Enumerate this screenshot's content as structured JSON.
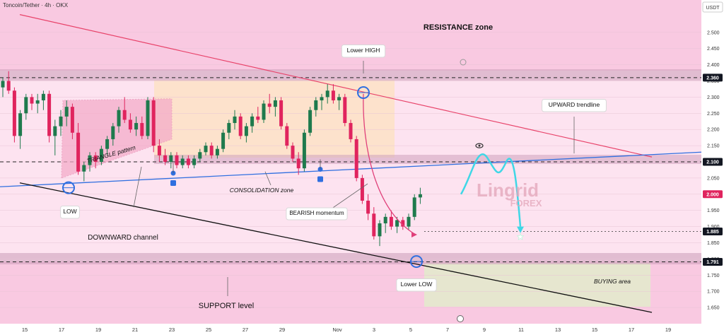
{
  "header": {
    "symbol_title": "Toncoin/Tether · 4h · OKX",
    "currency": "USDT"
  },
  "watermark": {
    "line1": "Lingrid",
    "line2": "FOREX"
  },
  "colors": {
    "pink_bg": "#fbd2e9",
    "candle_up": "#1f7a4d",
    "candle_down": "#e0245e",
    "resistance_line": "#e8436a",
    "blue_line": "#2f6fe0",
    "black_line": "#111111",
    "cyan_path": "#3fd7e6",
    "curve_pink": "#e0407a"
  },
  "chart_data": {
    "type": "candlestick",
    "title": "Toncoin/Tether · 4h · OKX",
    "y_axis": {
      "unit": "USDT",
      "range": [
        1.6,
        2.6
      ],
      "ticks": [
        2.5,
        2.45,
        2.4,
        2.35,
        2.3,
        2.25,
        2.2,
        2.15,
        2.1,
        2.05,
        2.0,
        1.95,
        1.9,
        1.85,
        1.8,
        1.75,
        1.7,
        1.65
      ],
      "tick_labels": [
        "2.500",
        "2.450",
        "2.400",
        "2.350",
        "2.300",
        "2.250",
        "2.200",
        "2.150",
        "2.100",
        "2.050",
        "2.000",
        "1.950",
        "1.900",
        "1.850",
        "1.800",
        "1.750",
        "1.700",
        "1.650"
      ],
      "price_tags": [
        {
          "label": "2.360",
          "value": 2.36,
          "style": "dark"
        },
        {
          "label": "2.100",
          "value": 2.1,
          "style": "dark"
        },
        {
          "label": "2.000",
          "value": 2.0,
          "style": "red"
        },
        {
          "label": "1.885",
          "value": 1.885,
          "style": "dark"
        },
        {
          "label": "1.791",
          "value": 1.791,
          "style": "dark"
        }
      ]
    },
    "x_axis": {
      "labels": [
        "15",
        "17",
        "19",
        "21",
        "23",
        "25",
        "27",
        "29",
        "Nov",
        "3",
        "5",
        "7",
        "9",
        "11",
        "13",
        "15",
        "17",
        "19"
      ],
      "label_day_index": [
        0,
        2,
        4,
        6,
        8,
        10,
        12,
        14,
        17,
        19,
        21,
        23,
        25,
        27,
        29,
        31,
        33,
        35
      ],
      "start_day_label": "15"
    },
    "candles": [
      [
        2.33,
        2.36,
        2.3,
        2.35
      ],
      [
        2.35,
        2.38,
        2.31,
        2.32
      ],
      [
        2.32,
        2.33,
        2.16,
        2.18
      ],
      [
        2.18,
        2.26,
        2.14,
        2.25
      ],
      [
        2.25,
        2.31,
        2.23,
        2.3
      ],
      [
        2.3,
        2.31,
        2.26,
        2.28
      ],
      [
        2.28,
        2.31,
        2.25,
        2.29
      ],
      [
        2.29,
        2.32,
        2.26,
        2.31
      ],
      [
        2.31,
        2.32,
        2.16,
        2.18
      ],
      [
        2.18,
        2.23,
        2.12,
        2.21
      ],
      [
        2.21,
        2.26,
        2.18,
        2.24
      ],
      [
        2.24,
        2.29,
        2.21,
        2.27
      ],
      [
        2.27,
        2.28,
        2.17,
        2.19
      ],
      [
        2.19,
        2.22,
        2.06,
        2.07
      ],
      [
        2.07,
        2.1,
        2.04,
        2.09
      ],
      [
        2.09,
        2.13,
        2.07,
        2.12
      ],
      [
        2.12,
        2.13,
        2.08,
        2.1
      ],
      [
        2.1,
        2.15,
        2.09,
        2.14
      ],
      [
        2.14,
        2.18,
        2.12,
        2.17
      ],
      [
        2.17,
        2.22,
        2.15,
        2.21
      ],
      [
        2.21,
        2.27,
        2.19,
        2.26
      ],
      [
        2.26,
        2.3,
        2.22,
        2.23
      ],
      [
        2.23,
        2.25,
        2.19,
        2.2
      ],
      [
        2.2,
        2.24,
        2.18,
        2.22
      ],
      [
        2.22,
        2.24,
        2.17,
        2.18
      ],
      [
        2.18,
        2.3,
        2.17,
        2.29
      ],
      [
        2.29,
        2.3,
        2.13,
        2.15
      ],
      [
        2.15,
        2.17,
        2.1,
        2.12
      ],
      [
        2.12,
        2.14,
        2.09,
        2.1
      ],
      [
        2.1,
        2.13,
        2.08,
        2.12
      ],
      [
        2.12,
        2.13,
        2.08,
        2.09
      ],
      [
        2.09,
        2.12,
        2.08,
        2.11
      ],
      [
        2.11,
        2.12,
        2.08,
        2.09
      ],
      [
        2.09,
        2.12,
        2.08,
        2.11
      ],
      [
        2.11,
        2.14,
        2.1,
        2.13
      ],
      [
        2.13,
        2.16,
        2.12,
        2.15
      ],
      [
        2.15,
        2.16,
        2.11,
        2.12
      ],
      [
        2.12,
        2.15,
        2.11,
        2.14
      ],
      [
        2.14,
        2.2,
        2.13,
        2.19
      ],
      [
        2.19,
        2.23,
        2.17,
        2.22
      ],
      [
        2.22,
        2.26,
        2.2,
        2.24
      ],
      [
        2.24,
        2.25,
        2.17,
        2.18
      ],
      [
        2.18,
        2.22,
        2.16,
        2.21
      ],
      [
        2.21,
        2.25,
        2.19,
        2.24
      ],
      [
        2.24,
        2.27,
        2.22,
        2.23
      ],
      [
        2.23,
        2.29,
        2.22,
        2.28
      ],
      [
        2.28,
        2.31,
        2.25,
        2.27
      ],
      [
        2.27,
        2.3,
        2.24,
        2.29
      ],
      [
        2.29,
        2.3,
        2.2,
        2.21
      ],
      [
        2.21,
        2.22,
        2.14,
        2.15
      ],
      [
        2.15,
        2.16,
        2.1,
        2.11
      ],
      [
        2.11,
        2.13,
        2.06,
        2.08
      ],
      [
        2.08,
        2.2,
        2.07,
        2.19
      ],
      [
        2.19,
        2.27,
        2.18,
        2.26
      ],
      [
        2.26,
        2.3,
        2.24,
        2.29
      ],
      [
        2.29,
        2.31,
        2.26,
        2.3
      ],
      [
        2.3,
        2.34,
        2.28,
        2.32
      ],
      [
        2.32,
        2.34,
        2.28,
        2.29
      ],
      [
        2.29,
        2.31,
        2.26,
        2.3
      ],
      [
        2.3,
        2.31,
        2.21,
        2.22
      ],
      [
        2.22,
        2.23,
        2.16,
        2.17
      ],
      [
        2.17,
        2.18,
        2.04,
        2.05
      ],
      [
        2.05,
        2.06,
        1.97,
        1.98
      ],
      [
        1.98,
        2.0,
        1.92,
        1.94
      ],
      [
        1.94,
        1.96,
        1.86,
        1.87
      ],
      [
        1.87,
        1.92,
        1.84,
        1.91
      ],
      [
        1.91,
        1.94,
        1.88,
        1.93
      ],
      [
        1.93,
        1.95,
        1.89,
        1.9
      ],
      [
        1.9,
        1.93,
        1.88,
        1.92
      ],
      [
        1.92,
        1.93,
        1.89,
        1.9
      ],
      [
        1.9,
        1.94,
        1.89,
        1.93
      ],
      [
        1.93,
        2.0,
        1.92,
        1.99
      ],
      [
        1.99,
        2.02,
        1.97,
        2.0
      ]
    ],
    "annotations": [
      {
        "text": "RESISTANCE zone"
      },
      {
        "text": "Lower HIGH"
      },
      {
        "text": "UPWARD trendline"
      },
      {
        "text": "TRIANGLE pattern"
      },
      {
        "text": "CONSOLIDATION zone"
      },
      {
        "text": "BEARISH momentum"
      },
      {
        "text": "LOW"
      },
      {
        "text": "DOWNWARD channel"
      },
      {
        "text": "Lower LOW"
      },
      {
        "text": "BUYING area"
      },
      {
        "text": "SUPPORT level"
      }
    ]
  }
}
